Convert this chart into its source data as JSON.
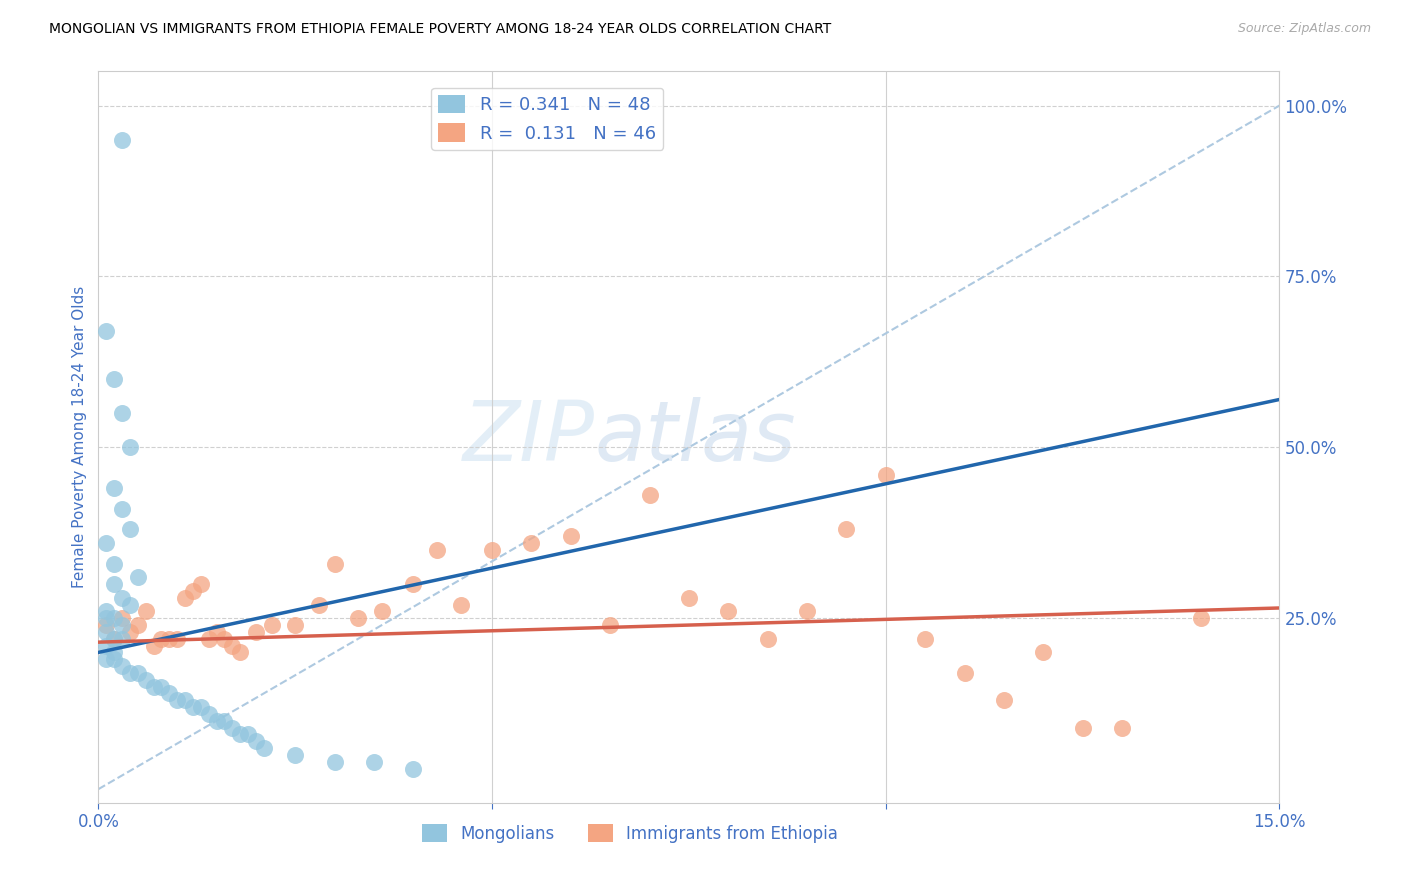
{
  "title": "MONGOLIAN VS IMMIGRANTS FROM ETHIOPIA FEMALE POVERTY AMONG 18-24 YEAR OLDS CORRELATION CHART",
  "source": "Source: ZipAtlas.com",
  "ylabel_left": "Female Poverty Among 18-24 Year Olds",
  "watermark": "ZIPatlas",
  "blue_color": "#92c5de",
  "pink_color": "#f4a582",
  "blue_line_color": "#2166ac",
  "pink_line_color": "#d6604d",
  "ref_line_color": "#aec9e0",
  "tick_label_color": "#4472c4",
  "xlim": [
    0.0,
    0.15
  ],
  "ylim": [
    -0.02,
    1.05
  ],
  "blue_scatter_x": [
    0.003,
    0.001,
    0.002,
    0.003,
    0.004,
    0.002,
    0.003,
    0.004,
    0.001,
    0.002,
    0.005,
    0.002,
    0.003,
    0.004,
    0.001,
    0.002,
    0.003,
    0.001,
    0.002,
    0.003,
    0.001,
    0.002,
    0.001,
    0.002,
    0.003,
    0.004,
    0.005,
    0.006,
    0.007,
    0.008,
    0.009,
    0.01,
    0.011,
    0.012,
    0.013,
    0.014,
    0.015,
    0.016,
    0.017,
    0.018,
    0.019,
    0.02,
    0.021,
    0.025,
    0.03,
    0.035,
    0.04,
    0.001
  ],
  "blue_scatter_y": [
    0.95,
    0.67,
    0.6,
    0.55,
    0.5,
    0.44,
    0.41,
    0.38,
    0.36,
    0.33,
    0.31,
    0.3,
    0.28,
    0.27,
    0.26,
    0.25,
    0.24,
    0.23,
    0.22,
    0.22,
    0.21,
    0.2,
    0.19,
    0.19,
    0.18,
    0.17,
    0.17,
    0.16,
    0.15,
    0.15,
    0.14,
    0.13,
    0.13,
    0.12,
    0.12,
    0.11,
    0.1,
    0.1,
    0.09,
    0.08,
    0.08,
    0.07,
    0.06,
    0.05,
    0.04,
    0.04,
    0.03,
    0.25
  ],
  "pink_scatter_x": [
    0.001,
    0.002,
    0.003,
    0.004,
    0.005,
    0.006,
    0.007,
    0.008,
    0.009,
    0.01,
    0.011,
    0.012,
    0.013,
    0.014,
    0.015,
    0.016,
    0.017,
    0.018,
    0.02,
    0.022,
    0.025,
    0.028,
    0.03,
    0.033,
    0.036,
    0.04,
    0.043,
    0.046,
    0.05,
    0.055,
    0.06,
    0.065,
    0.07,
    0.075,
    0.08,
    0.085,
    0.09,
    0.095,
    0.1,
    0.105,
    0.11,
    0.115,
    0.12,
    0.125,
    0.13,
    0.14
  ],
  "pink_scatter_y": [
    0.24,
    0.22,
    0.25,
    0.23,
    0.24,
    0.26,
    0.21,
    0.22,
    0.22,
    0.22,
    0.28,
    0.29,
    0.3,
    0.22,
    0.23,
    0.22,
    0.21,
    0.2,
    0.23,
    0.24,
    0.24,
    0.27,
    0.33,
    0.25,
    0.26,
    0.3,
    0.35,
    0.27,
    0.35,
    0.36,
    0.37,
    0.24,
    0.43,
    0.28,
    0.26,
    0.22,
    0.26,
    0.38,
    0.46,
    0.22,
    0.17,
    0.13,
    0.2,
    0.09,
    0.09,
    0.25
  ],
  "blue_line_x0": 0.0,
  "blue_line_x1": 0.15,
  "blue_line_y0": 0.2,
  "blue_line_y1": 0.57,
  "pink_line_x0": 0.0,
  "pink_line_x1": 0.15,
  "pink_line_y0": 0.215,
  "pink_line_y1": 0.265,
  "ref_line_x0": 0.0,
  "ref_line_x1": 0.15,
  "ref_line_y0": 0.0,
  "ref_line_y1": 1.0,
  "legend1_label": "R = 0.341   N = 48",
  "legend2_label": "R =  0.131   N = 46",
  "bottom_legend1": "Mongolians",
  "bottom_legend2": "Immigrants from Ethiopia"
}
